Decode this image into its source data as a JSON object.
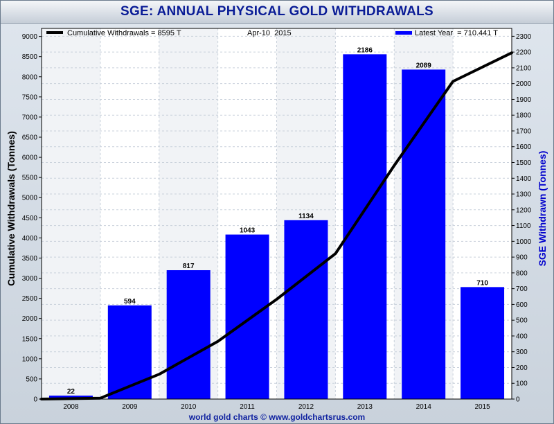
{
  "chart_data": {
    "type": "bar",
    "title": "SGE: ANNUAL PHYSICAL GOLD WITHDRAWALS",
    "date_label": "Apr-10  2015",
    "footer": "world gold charts © www.goldchartsrus.com",
    "categories": [
      "2008",
      "2009",
      "2010",
      "2011",
      "2012",
      "2013",
      "2014",
      "2015"
    ],
    "series": [
      {
        "name": "Latest Year  = 710.441 T",
        "type": "bar",
        "axis": "right",
        "color": "#0000ff",
        "values": [
          22,
          594,
          817,
          1043,
          1134,
          2186,
          2089,
          710
        ],
        "labels": [
          "22",
          "594",
          "817",
          "1043",
          "1134",
          "2186",
          "2089",
          "710"
        ]
      },
      {
        "name": "Cumulative Withdrawals = 8595 T",
        "type": "line",
        "axis": "left",
        "color": "#000000",
        "x": [
          2007.5,
          2008.5,
          2009.5,
          2010.5,
          2011.5,
          2012.5,
          2013.5,
          2014.5,
          2015.5
        ],
        "values": [
          0,
          22,
          616,
          1433,
          2476,
          3610,
          5796,
          7885,
          8595
        ]
      }
    ],
    "ylabel": "Cumulative Withdrawals (Tonnes)",
    "ylabel_right": "SGE Withdrawn (Tonnes)",
    "ylim": [
      0,
      9200
    ],
    "ylim_right": [
      0,
      2350
    ],
    "yticks": [
      0,
      500,
      1000,
      1500,
      2000,
      2500,
      3000,
      3500,
      4000,
      4500,
      5000,
      5500,
      6000,
      6500,
      7000,
      7500,
      8000,
      8500,
      9000
    ],
    "yticks_right": [
      0,
      100,
      200,
      300,
      400,
      500,
      600,
      700,
      800,
      900,
      1000,
      1100,
      1200,
      1300,
      1400,
      1500,
      1600,
      1700,
      1800,
      1900,
      2000,
      2100,
      2200,
      2300
    ],
    "grid": true,
    "legend_left": "top-left",
    "legend_right": "top-right",
    "colors": {
      "bar": "#0000ff",
      "line": "#000000",
      "axis_label": "#0000cc",
      "title": "#0a1c96"
    }
  }
}
